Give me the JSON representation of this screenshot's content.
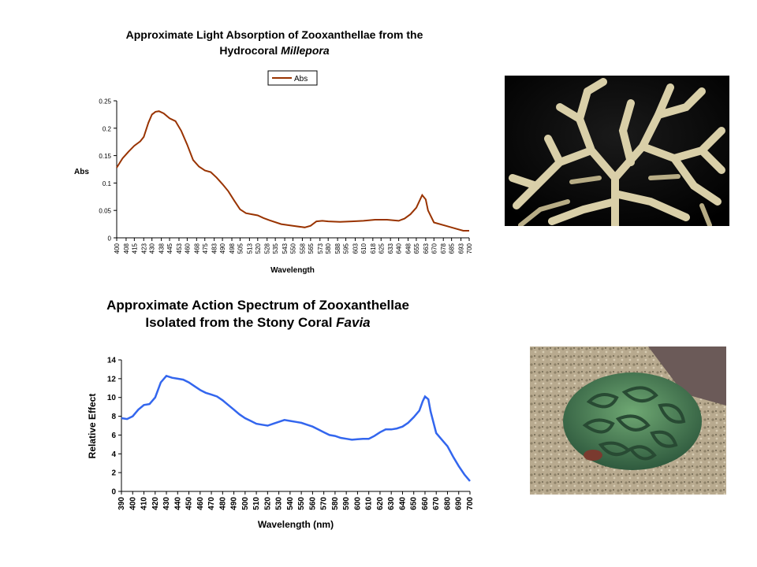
{
  "chart_data": [
    {
      "type": "line",
      "title_line1": "Approximate Light Absorption of Zooxanthellae from the",
      "title_line2_prefix": "Hydrocoral ",
      "title_line2_italic": "Millepora",
      "xlabel": "Wavelength",
      "ylabel": "Abs",
      "legend": "Abs",
      "legend_position": "top-center",
      "ylim": [
        0,
        0.25
      ],
      "yticks": [
        "0",
        "0.05",
        "0.1",
        "0.15",
        "0.2",
        "0.25"
      ],
      "xticks": [
        "400",
        "408",
        "415",
        "423",
        "430",
        "438",
        "445",
        "453",
        "460",
        "468",
        "475",
        "483",
        "490",
        "498",
        "505",
        "513",
        "520",
        "528",
        "535",
        "543",
        "550",
        "558",
        "565",
        "573",
        "580",
        "588",
        "595",
        "603",
        "610",
        "618",
        "625",
        "633",
        "640",
        "648",
        "655",
        "663",
        "670",
        "678",
        "685",
        "693",
        "700"
      ],
      "grid": false,
      "series": [
        {
          "name": "Abs",
          "color": "#993300",
          "x": [
            400,
            405,
            410,
            415,
            420,
            423,
            427,
            430,
            433,
            436,
            440,
            445,
            450,
            455,
            460,
            465,
            470,
            475,
            480,
            485,
            490,
            495,
            500,
            505,
            510,
            515,
            520,
            525,
            530,
            540,
            550,
            560,
            565,
            570,
            575,
            580,
            590,
            600,
            610,
            620,
            630,
            640,
            645,
            650,
            655,
            660,
            663,
            665,
            670,
            680,
            690,
            695,
            700
          ],
          "y": [
            0.128,
            0.145,
            0.157,
            0.168,
            0.176,
            0.184,
            0.21,
            0.225,
            0.23,
            0.231,
            0.227,
            0.218,
            0.213,
            0.195,
            0.17,
            0.142,
            0.13,
            0.123,
            0.12,
            0.11,
            0.098,
            0.085,
            0.068,
            0.052,
            0.045,
            0.043,
            0.041,
            0.036,
            0.032,
            0.025,
            0.022,
            0.019,
            0.022,
            0.03,
            0.031,
            0.03,
            0.029,
            0.03,
            0.031,
            0.033,
            0.033,
            0.031,
            0.035,
            0.043,
            0.055,
            0.078,
            0.07,
            0.05,
            0.028,
            0.022,
            0.016,
            0.013,
            0.013
          ]
        }
      ]
    },
    {
      "type": "line",
      "title_line1": "Approximate Action Spectrum of Zooxanthellae",
      "title_line2_prefix": "Isolated from the Stony Coral ",
      "title_line2_italic": "Favia",
      "xlabel": "Wavelength (nm)",
      "ylabel": "Relative Effect",
      "ylim": [
        0,
        14
      ],
      "yticks": [
        "0",
        "2",
        "4",
        "6",
        "8",
        "10",
        "12",
        "14"
      ],
      "xticks": [
        "390",
        "400",
        "410",
        "420",
        "430",
        "440",
        "450",
        "460",
        "470",
        "480",
        "490",
        "500",
        "510",
        "520",
        "530",
        "540",
        "550",
        "560",
        "570",
        "580",
        "590",
        "600",
        "610",
        "620",
        "630",
        "640",
        "650",
        "660",
        "670",
        "680",
        "690",
        "700"
      ],
      "grid": false,
      "series": [
        {
          "color": "#3366ee",
          "x": [
            390,
            395,
            400,
            405,
            410,
            415,
            420,
            425,
            430,
            435,
            440,
            445,
            450,
            455,
            460,
            465,
            470,
            475,
            480,
            485,
            490,
            495,
            500,
            505,
            510,
            515,
            520,
            525,
            530,
            535,
            540,
            545,
            550,
            555,
            560,
            565,
            570,
            575,
            580,
            585,
            590,
            595,
            600,
            605,
            610,
            615,
            620,
            625,
            630,
            635,
            640,
            645,
            650,
            655,
            658,
            660,
            663,
            665,
            670,
            675,
            680,
            685,
            690,
            695,
            700
          ],
          "y": [
            7.8,
            7.7,
            8.0,
            8.7,
            9.2,
            9.3,
            10.0,
            11.6,
            12.3,
            12.1,
            12.0,
            11.9,
            11.6,
            11.2,
            10.8,
            10.5,
            10.3,
            10.1,
            9.7,
            9.2,
            8.7,
            8.2,
            7.8,
            7.5,
            7.2,
            7.1,
            7.0,
            7.2,
            7.4,
            7.6,
            7.5,
            7.4,
            7.3,
            7.1,
            6.9,
            6.6,
            6.3,
            6.0,
            5.9,
            5.7,
            5.6,
            5.5,
            5.55,
            5.6,
            5.6,
            5.9,
            6.3,
            6.6,
            6.6,
            6.7,
            6.9,
            7.3,
            7.9,
            8.6,
            9.6,
            10.1,
            9.8,
            8.5,
            6.2,
            5.5,
            4.8,
            3.7,
            2.7,
            1.8,
            1.1
          ]
        }
      ]
    }
  ],
  "photos": [
    {
      "icon": "branching-hydrocoral-millepora-photo"
    },
    {
      "icon": "stony-coral-favia-photo"
    }
  ]
}
